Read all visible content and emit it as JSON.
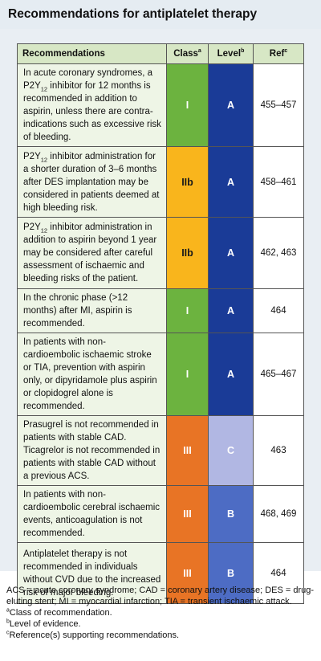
{
  "title": "Recommendations for antiplatelet therapy",
  "table": {
    "headers": {
      "recommendation": "Recommendations",
      "class": "Class",
      "class_sup": "a",
      "level": "Level",
      "level_sup": "b",
      "ref": "Ref",
      "ref_sup": "c"
    },
    "rows": [
      {
        "pre": "In acute coronary syndromes, a P2Y",
        "sub": "12",
        "post": " inhibitor for 12 months is recommended in addition to aspirin, unless there are contra-indications such as excessive risk of bleeding.",
        "class": "I",
        "level": "A",
        "ref": "455–457"
      },
      {
        "pre": "P2Y",
        "sub": "12",
        "post": " inhibitor administration for a shorter duration of 3–6 months after DES implantation may be considered in patients deemed at high bleeding risk.",
        "class": "IIb",
        "level": "A",
        "ref": "458–461"
      },
      {
        "pre": "P2Y",
        "sub": "12",
        "post": " inhibitor administration in addition to aspirin beyond 1 year may be considered after careful assessment of ischaemic and bleeding risks of the patient.",
        "class": "IIb",
        "level": "A",
        "ref": "462, 463"
      },
      {
        "pre": "In the chronic phase (>12 months) after MI, aspirin is recommended.",
        "sub": "",
        "post": "",
        "class": "I",
        "level": "A",
        "ref": "464"
      },
      {
        "pre": "In patients with non-cardioembolic ischaemic stroke or TIA, prevention with aspirin only, or dipyridamole plus aspirin or clopidogrel alone is recommended.",
        "sub": "",
        "post": "",
        "class": "I",
        "level": "A",
        "ref": "465–467"
      },
      {
        "pre": "Prasugrel is not recommended in patients with stable CAD. Ticagrelor is not recommended in patients with stable CAD without a previous ACS.",
        "sub": "",
        "post": "",
        "class": "III",
        "level": "C",
        "ref": "463"
      },
      {
        "pre": "In patients with non-cardioembolic cerebral ischaemic events, anticoagulation is not recommended.",
        "sub": "",
        "post": "",
        "class": "III",
        "level": "B",
        "ref": "468, 469"
      },
      {
        "pre": "Antiplatelet therapy is not recommended in individuals without CVD due to the increased risk of major bleeding.",
        "sub": "",
        "post": "",
        "class": "III",
        "level": "B",
        "ref": "464"
      }
    ]
  },
  "footnotes": {
    "abbreviations": "ACS = acute coronary syndrome; CAD = coronary artery disease; DES = drug-eluting stent; MI = myocardial infarction; TIA = transient ischaemic attack.",
    "a_mark": "a",
    "a_text": "Class of recommendation.",
    "b_mark": "b",
    "b_text": "Level of evidence.",
    "c_mark": "c",
    "c_text": "Reference(s) supporting recommendations."
  },
  "colors": {
    "class_I": "#6cb33f",
    "class_IIb": "#f9b51c",
    "class_III": "#e87425",
    "level_A": "#1a3b97",
    "level_B": "#4d6cc4",
    "level_C": "#b1b7e3",
    "header_bg": "#d7e7c5",
    "box_bg": "#e9eef3"
  }
}
